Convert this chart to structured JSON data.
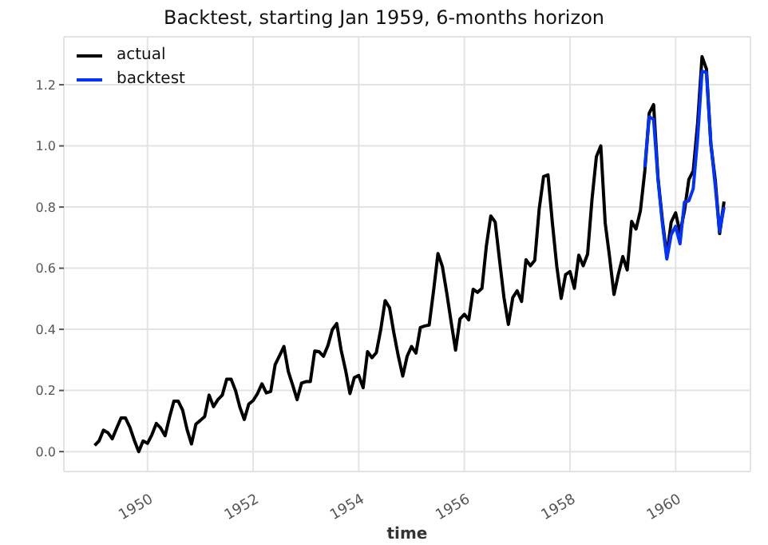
{
  "chart_data": {
    "type": "line",
    "title": "Backtest, starting Jan 1959, 6-months horizon",
    "xlabel": "time",
    "xlim": [
      "1948-06",
      "1961-06"
    ],
    "xticks": [
      "1950",
      "1952",
      "1954",
      "1956",
      "1958",
      "1960"
    ],
    "ylim": [
      -0.065,
      1.357
    ],
    "yticks": [
      {
        "value": 0,
        "label": "0.0"
      },
      0.2,
      0.4,
      0.6,
      0.8,
      {
        "value": 1,
        "label": "1.0"
      },
      1.2
    ],
    "grid": true,
    "legend": "top left",
    "series": [
      {
        "name": "actual",
        "color": "#000000",
        "x": [
          "1949-01",
          "1949-02",
          "1949-03",
          "1949-04",
          "1949-05",
          "1949-06",
          "1949-07",
          "1949-08",
          "1949-09",
          "1949-10",
          "1949-11",
          "1949-12",
          "1950-01",
          "1950-02",
          "1950-03",
          "1950-04",
          "1950-05",
          "1950-06",
          "1950-07",
          "1950-08",
          "1950-09",
          "1950-10",
          "1950-11",
          "1950-12",
          "1951-01",
          "1951-02",
          "1951-03",
          "1951-04",
          "1951-05",
          "1951-06",
          "1951-07",
          "1951-08",
          "1951-09",
          "1951-10",
          "1951-11",
          "1951-12",
          "1952-01",
          "1952-02",
          "1952-03",
          "1952-04",
          "1952-05",
          "1952-06",
          "1952-07",
          "1952-08",
          "1952-09",
          "1952-10",
          "1952-11",
          "1952-12",
          "1953-01",
          "1953-02",
          "1953-03",
          "1953-04",
          "1953-05",
          "1953-06",
          "1953-07",
          "1953-08",
          "1953-09",
          "1953-10",
          "1953-11",
          "1953-12",
          "1954-01",
          "1954-02",
          "1954-03",
          "1954-04",
          "1954-05",
          "1954-06",
          "1954-07",
          "1954-08",
          "1954-09",
          "1954-10",
          "1954-11",
          "1954-12",
          "1955-01",
          "1955-02",
          "1955-03",
          "1955-04",
          "1955-05",
          "1955-06",
          "1955-07",
          "1955-08",
          "1955-09",
          "1955-10",
          "1955-11",
          "1955-12",
          "1956-01",
          "1956-02",
          "1956-03",
          "1956-04",
          "1956-05",
          "1956-06",
          "1956-07",
          "1956-08",
          "1956-09",
          "1956-10",
          "1956-11",
          "1956-12",
          "1957-01",
          "1957-02",
          "1957-03",
          "1957-04",
          "1957-05",
          "1957-06",
          "1957-07",
          "1957-08",
          "1957-09",
          "1957-10",
          "1957-11",
          "1957-12",
          "1958-01",
          "1958-02",
          "1958-03",
          "1958-04",
          "1958-05",
          "1958-06",
          "1958-07",
          "1958-08",
          "1958-09",
          "1958-10",
          "1958-11",
          "1958-12",
          "1959-01",
          "1959-02",
          "1959-03",
          "1959-04",
          "1959-05",
          "1959-06",
          "1959-07",
          "1959-08",
          "1959-09",
          "1959-10",
          "1959-11",
          "1959-12",
          "1960-01",
          "1960-02",
          "1960-03",
          "1960-04",
          "1960-05",
          "1960-06",
          "1960-07",
          "1960-08",
          "1960-09",
          "1960-10",
          "1960-11",
          "1960-12"
        ],
        "values": [
          0.02,
          0.035,
          0.07,
          0.062,
          0.042,
          0.077,
          0.11,
          0.11,
          0.08,
          0.037,
          0.0,
          0.035,
          0.027,
          0.055,
          0.092,
          0.077,
          0.052,
          0.112,
          0.165,
          0.165,
          0.135,
          0.072,
          0.025,
          0.09,
          0.102,
          0.115,
          0.185,
          0.147,
          0.17,
          0.185,
          0.237,
          0.237,
          0.2,
          0.145,
          0.105,
          0.155,
          0.167,
          0.19,
          0.222,
          0.192,
          0.197,
          0.284,
          0.314,
          0.344,
          0.262,
          0.217,
          0.17,
          0.224,
          0.229,
          0.229,
          0.329,
          0.327,
          0.312,
          0.347,
          0.399,
          0.419,
          0.332,
          0.267,
          0.19,
          0.242,
          0.249,
          0.209,
          0.327,
          0.307,
          0.324,
          0.399,
          0.494,
          0.471,
          0.387,
          0.312,
          0.247,
          0.312,
          0.344,
          0.322,
          0.406,
          0.411,
          0.414,
          0.526,
          0.648,
          0.606,
          0.519,
          0.424,
          0.332,
          0.434,
          0.449,
          0.431,
          0.531,
          0.521,
          0.534,
          0.673,
          0.771,
          0.751,
          0.626,
          0.504,
          0.416,
          0.504,
          0.526,
          0.491,
          0.628,
          0.608,
          0.626,
          0.793,
          0.9,
          0.905,
          0.748,
          0.606,
          0.501,
          0.579,
          0.589,
          0.534,
          0.643,
          0.608,
          0.646,
          0.825,
          0.965,
          1.0,
          0.748,
          0.636,
          0.514,
          0.581,
          0.638,
          0.594,
          0.753,
          0.728,
          0.788,
          0.918,
          1.107,
          1.135,
          0.895,
          0.756,
          0.643,
          0.751,
          0.781,
          0.716,
          0.786,
          0.89,
          0.918,
          1.075,
          1.292,
          1.252,
          1.007,
          0.89,
          0.713,
          0.818
        ]
      },
      {
        "name": "backtest",
        "color": "#0033ff",
        "x": [
          "1959-06",
          "1959-07",
          "1959-08",
          "1959-09",
          "1959-10",
          "1959-11",
          "1959-12",
          "1960-01",
          "1960-02",
          "1960-03",
          "1960-04",
          "1960-05",
          "1960-06",
          "1960-07",
          "1960-08",
          "1960-09",
          "1960-10",
          "1960-11",
          "1960-12"
        ],
        "values": [
          0.93,
          1.095,
          1.087,
          0.89,
          0.746,
          0.63,
          0.71,
          0.737,
          0.68,
          0.816,
          0.82,
          0.86,
          1.025,
          1.244,
          1.24,
          1.01,
          0.87,
          0.72,
          0.8
        ]
      }
    ]
  }
}
